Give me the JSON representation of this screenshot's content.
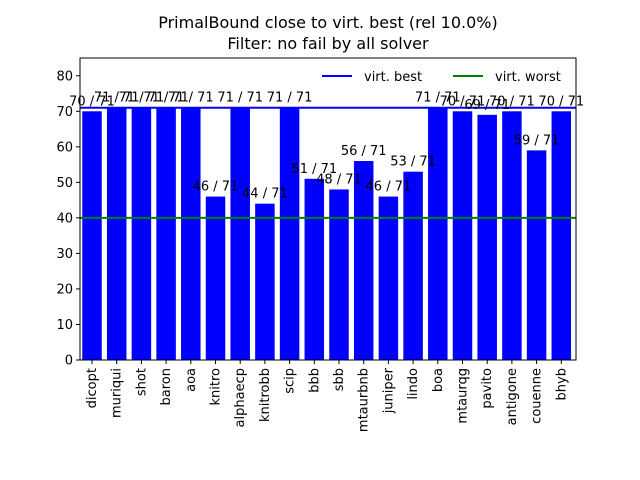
{
  "chart_data": {
    "type": "bar",
    "title": "PrimalBound close to virt. best (rel 10.0%)",
    "subtitle": "Filter: no fail by all solver",
    "xlabel": "",
    "ylabel": "",
    "ylim": [
      0,
      85
    ],
    "yticks": [
      0,
      10,
      20,
      30,
      40,
      50,
      60,
      70,
      80
    ],
    "categories": [
      "dicopt",
      "muriqui",
      "shot",
      "baron",
      "aoa",
      "knitro",
      "alphaecp",
      "knitrobb",
      "scip",
      "bbb",
      "sbb",
      "mtaurbnb",
      "juniper",
      "lindo",
      "boa",
      "mtaurqg",
      "pavito",
      "antigone",
      "couenne",
      "bhyb"
    ],
    "values": [
      70,
      71,
      71,
      71,
      71,
      46,
      71,
      44,
      71,
      51,
      48,
      56,
      46,
      53,
      71,
      70,
      69,
      70,
      59,
      70
    ],
    "labels": [
      "70 / 71",
      "71 / 71",
      "71 / 71",
      "71 / 71",
      "71 / 71",
      "46 / 71",
      "71 / 71",
      "44 / 71",
      "71 / 71",
      "51 / 71",
      "48 / 71",
      "56 / 71",
      "46 / 71",
      "53 / 71",
      "71 / 71",
      "70 / 71",
      "69 / 71",
      "70 / 71",
      "59 / 71",
      "70 / 71"
    ],
    "bar_color": "#0000ff",
    "reference_lines": [
      {
        "name": "virt. best",
        "value": 71,
        "color": "#0000ff"
      },
      {
        "name": "virt. worst",
        "value": 40,
        "color": "#008000"
      }
    ],
    "legend_position": "top-right",
    "grid": false
  }
}
